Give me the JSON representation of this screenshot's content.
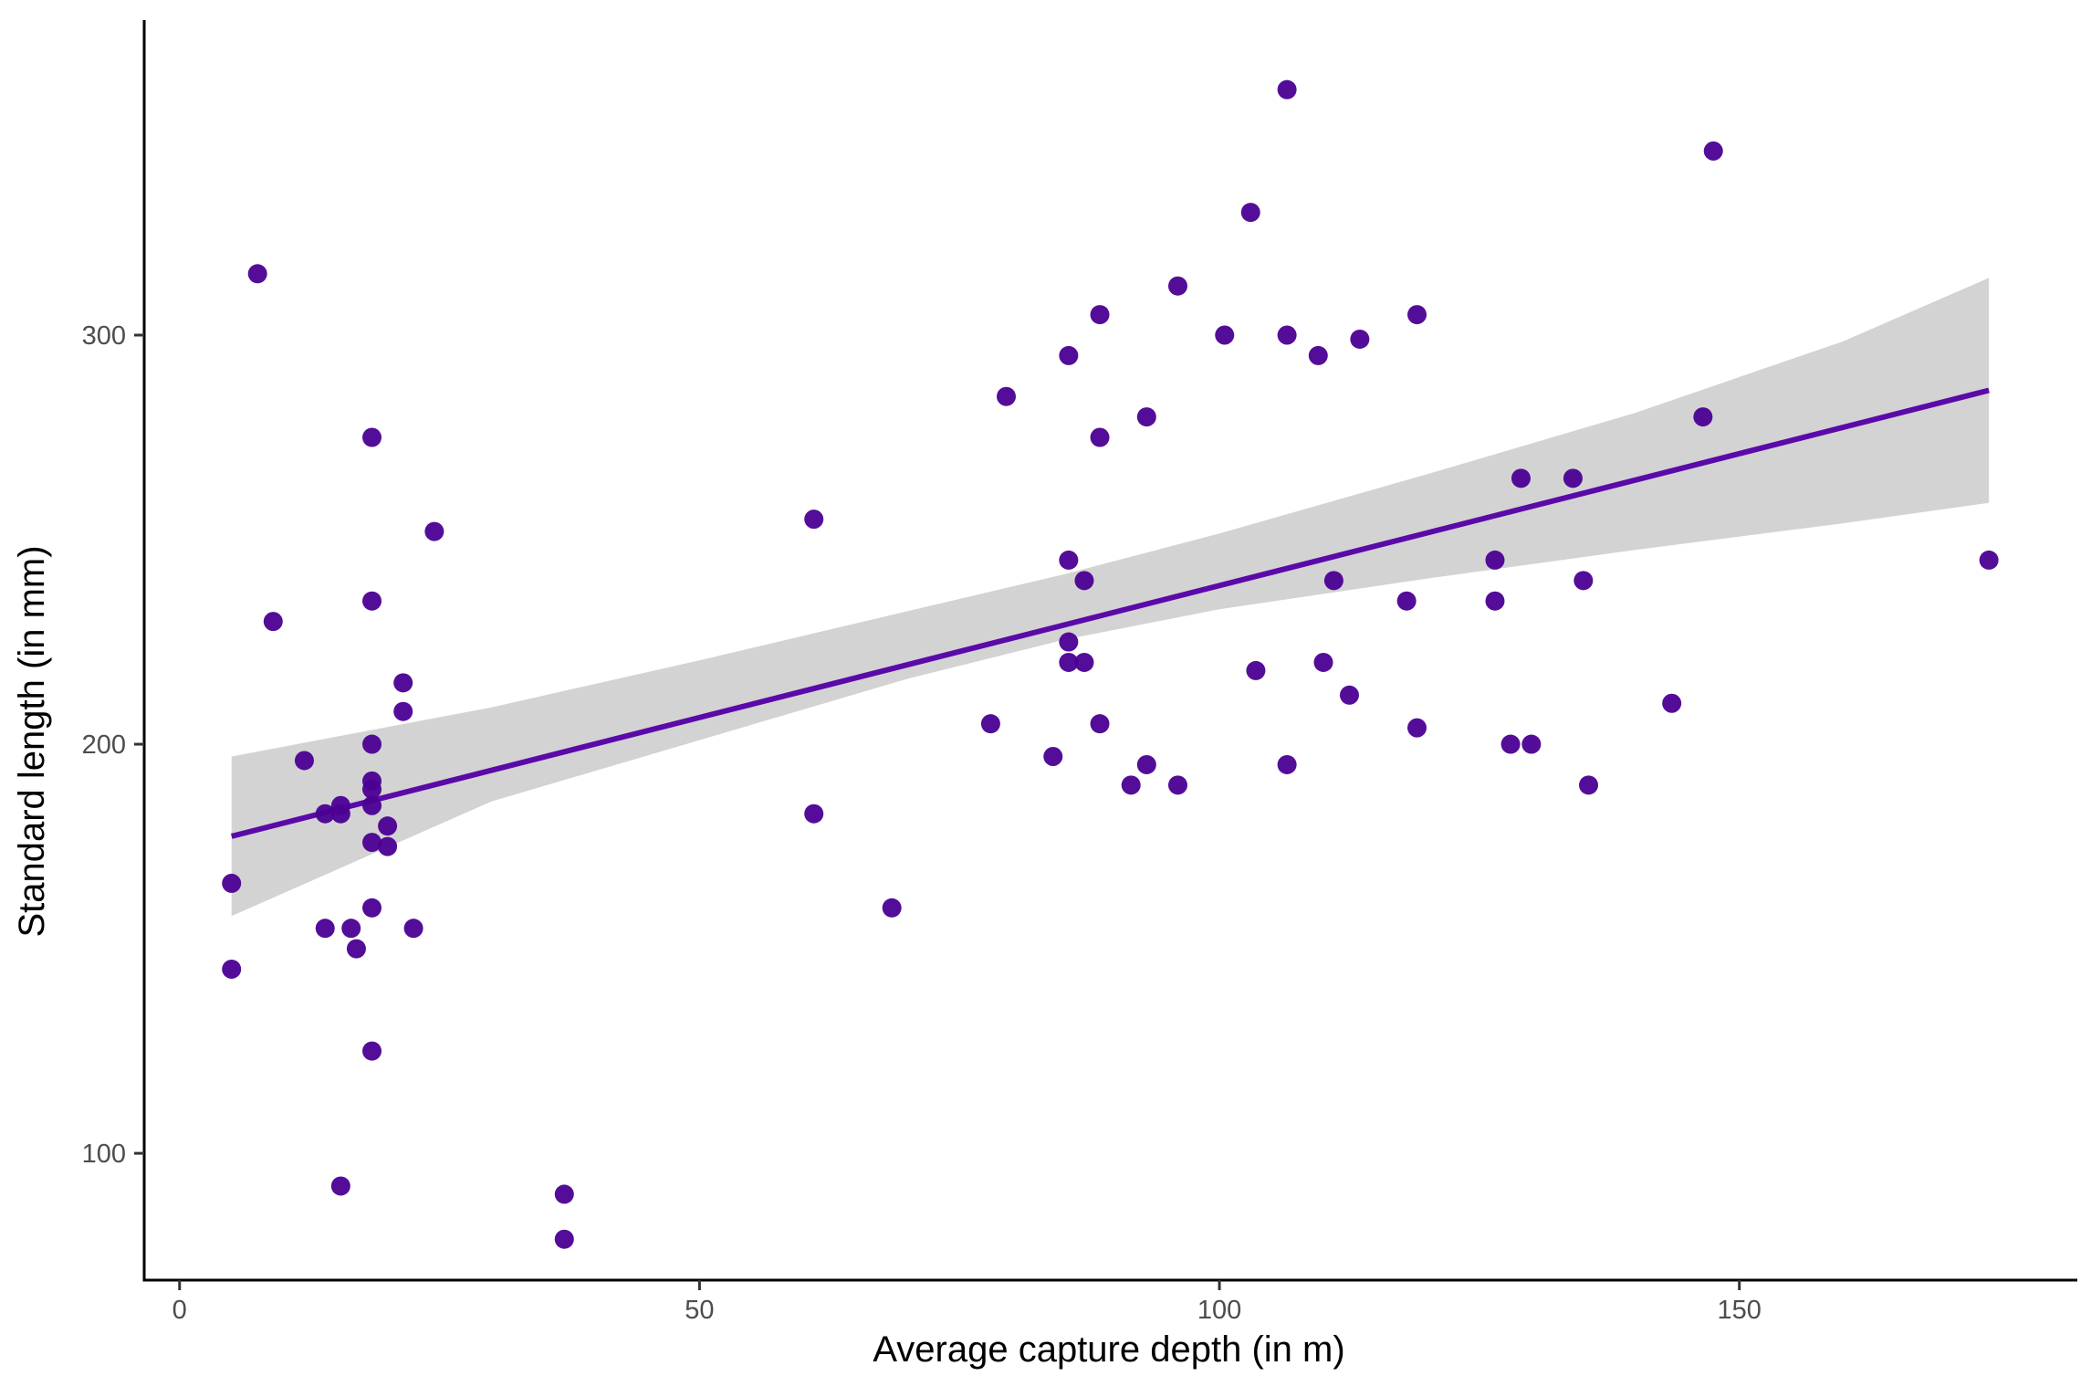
{
  "chart_data": {
    "type": "scatter",
    "title": "",
    "xlabel": "Average capture depth (in m)",
    "ylabel": "Standard length (in mm)",
    "xlim": [
      -3.4,
      182.5
    ],
    "ylim": [
      69,
      377
    ],
    "x_ticks": [
      0,
      50,
      100,
      150
    ],
    "y_ticks": [
      100,
      200,
      300
    ],
    "x_tick_labels": [
      "0",
      "50",
      "100",
      "150"
    ],
    "y_tick_labels": [
      "100",
      "200",
      "300"
    ],
    "grid": false,
    "legend": "none",
    "colors": {
      "points": "#4b0092",
      "line": "#5a0aa8",
      "band": "#d3d3d3",
      "axis": "#000000"
    },
    "points": [
      {
        "x": 5,
        "y": 166
      },
      {
        "x": 5,
        "y": 145
      },
      {
        "x": 7.5,
        "y": 315
      },
      {
        "x": 9,
        "y": 230
      },
      {
        "x": 12,
        "y": 196
      },
      {
        "x": 14,
        "y": 183
      },
      {
        "x": 14,
        "y": 155
      },
      {
        "x": 15.5,
        "y": 185
      },
      {
        "x": 15.5,
        "y": 183
      },
      {
        "x": 15.5,
        "y": 92
      },
      {
        "x": 16.5,
        "y": 155
      },
      {
        "x": 17,
        "y": 150
      },
      {
        "x": 18.5,
        "y": 275
      },
      {
        "x": 18.5,
        "y": 235
      },
      {
        "x": 18.5,
        "y": 200
      },
      {
        "x": 18.5,
        "y": 191
      },
      {
        "x": 18.5,
        "y": 189
      },
      {
        "x": 18.5,
        "y": 185
      },
      {
        "x": 18.5,
        "y": 176
      },
      {
        "x": 18.5,
        "y": 160
      },
      {
        "x": 18.5,
        "y": 125
      },
      {
        "x": 20,
        "y": 180
      },
      {
        "x": 20,
        "y": 175
      },
      {
        "x": 21.5,
        "y": 215
      },
      {
        "x": 21.5,
        "y": 208
      },
      {
        "x": 22.5,
        "y": 155
      },
      {
        "x": 24.5,
        "y": 252
      },
      {
        "x": 37,
        "y": 90
      },
      {
        "x": 37,
        "y": 79
      },
      {
        "x": 61,
        "y": 255
      },
      {
        "x": 61,
        "y": 183
      },
      {
        "x": 68.5,
        "y": 160
      },
      {
        "x": 78,
        "y": 205
      },
      {
        "x": 79.5,
        "y": 285
      },
      {
        "x": 84,
        "y": 197
      },
      {
        "x": 85.5,
        "y": 295
      },
      {
        "x": 85.5,
        "y": 245
      },
      {
        "x": 85.5,
        "y": 225
      },
      {
        "x": 85.5,
        "y": 220
      },
      {
        "x": 87,
        "y": 240
      },
      {
        "x": 87,
        "y": 220
      },
      {
        "x": 88.5,
        "y": 305
      },
      {
        "x": 88.5,
        "y": 275
      },
      {
        "x": 88.5,
        "y": 205
      },
      {
        "x": 91.5,
        "y": 190
      },
      {
        "x": 93,
        "y": 280
      },
      {
        "x": 93,
        "y": 195
      },
      {
        "x": 96,
        "y": 312
      },
      {
        "x": 96,
        "y": 190
      },
      {
        "x": 100.5,
        "y": 300
      },
      {
        "x": 103,
        "y": 330
      },
      {
        "x": 103.5,
        "y": 218
      },
      {
        "x": 106.5,
        "y": 360
      },
      {
        "x": 106.5,
        "y": 300
      },
      {
        "x": 106.5,
        "y": 195
      },
      {
        "x": 109.5,
        "y": 295
      },
      {
        "x": 110,
        "y": 220
      },
      {
        "x": 111,
        "y": 240
      },
      {
        "x": 112.5,
        "y": 212
      },
      {
        "x": 113.5,
        "y": 299
      },
      {
        "x": 118,
        "y": 235
      },
      {
        "x": 119,
        "y": 305
      },
      {
        "x": 119,
        "y": 204
      },
      {
        "x": 126.5,
        "y": 245
      },
      {
        "x": 126.5,
        "y": 235
      },
      {
        "x": 128,
        "y": 200
      },
      {
        "x": 129,
        "y": 265
      },
      {
        "x": 130,
        "y": 200
      },
      {
        "x": 134,
        "y": 265
      },
      {
        "x": 135,
        "y": 240
      },
      {
        "x": 135.5,
        "y": 190
      },
      {
        "x": 143.5,
        "y": 210
      },
      {
        "x": 146.5,
        "y": 280
      },
      {
        "x": 147.5,
        "y": 345
      },
      {
        "x": 174,
        "y": 245
      }
    ],
    "fit_line": {
      "x": [
        5,
        174
      ],
      "y": [
        177.5,
        286.5
      ]
    },
    "confidence_band": {
      "x": [
        5,
        30,
        50,
        70,
        85,
        100,
        120,
        140,
        160,
        174
      ],
      "lower": [
        158,
        186,
        201,
        216,
        225.5,
        233,
        240.5,
        247.5,
        254,
        259
      ],
      "upper": [
        197,
        209,
        220.5,
        232.5,
        241.5,
        251.5,
        266,
        281,
        298.5,
        314
      ]
    }
  }
}
